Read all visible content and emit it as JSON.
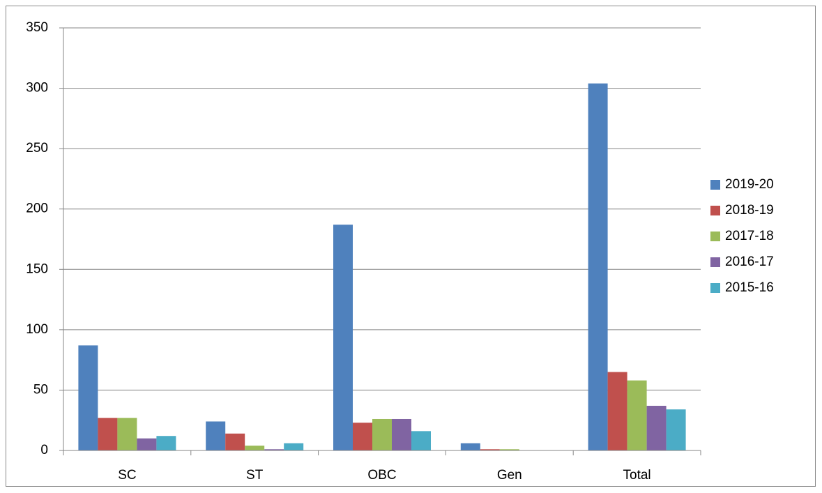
{
  "chart_data": {
    "type": "bar",
    "categories": [
      "SC",
      "ST",
      "OBC",
      "Gen",
      "Total"
    ],
    "series": [
      {
        "name": "2019-20",
        "color": "#4f81bd",
        "values": [
          87,
          24,
          187,
          6,
          304
        ]
      },
      {
        "name": "2018-19",
        "color": "#c0504d",
        "values": [
          27,
          14,
          23,
          1,
          65
        ]
      },
      {
        "name": "2017-18",
        "color": "#9bbb59",
        "values": [
          27,
          4,
          26,
          1,
          58
        ]
      },
      {
        "name": "2016-17",
        "color": "#8064a2",
        "values": [
          10,
          1,
          26,
          0,
          37
        ]
      },
      {
        "name": "2015-16",
        "color": "#4bacc6",
        "values": [
          12,
          6,
          16,
          0,
          34
        ]
      }
    ],
    "ylim": [
      0,
      350
    ],
    "yticks": [
      0,
      50,
      100,
      150,
      200,
      250,
      300,
      350
    ],
    "grid": true,
    "legend": "right"
  }
}
